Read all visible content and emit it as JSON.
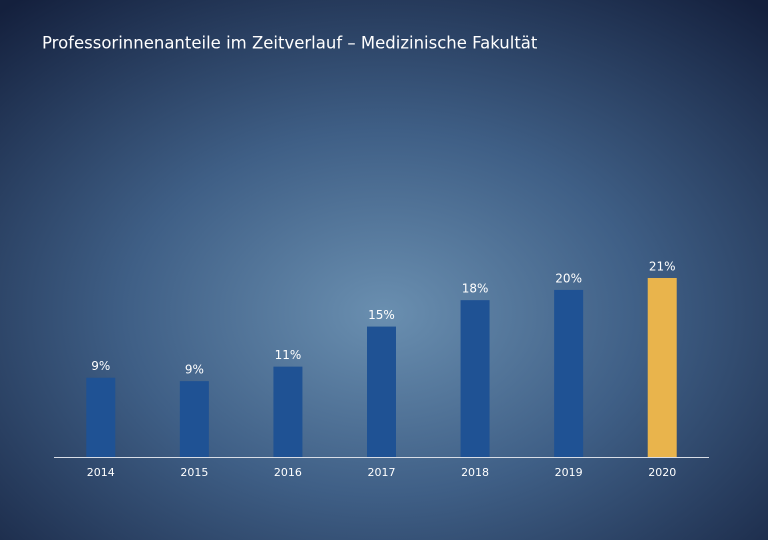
{
  "chart_data": {
    "type": "bar",
    "title": "Professorinnenanteile im Zeitverlauf – Medizinische Fakultät",
    "categories": [
      "2014",
      "2015",
      "2016",
      "2017",
      "2018",
      "2019",
      "2020"
    ],
    "values": [
      9.3,
      8.9,
      10.6,
      15.3,
      18.4,
      19.6,
      21
    ],
    "value_labels": [
      "9%",
      "9%",
      "11%",
      "15%",
      "18%",
      "20%",
      "21%"
    ],
    "colors": [
      "#1f5294",
      "#1f5294",
      "#1f5294",
      "#1f5294",
      "#1f5294",
      "#1f5294",
      "#e9b44c"
    ],
    "ylim": [
      0,
      21
    ]
  }
}
